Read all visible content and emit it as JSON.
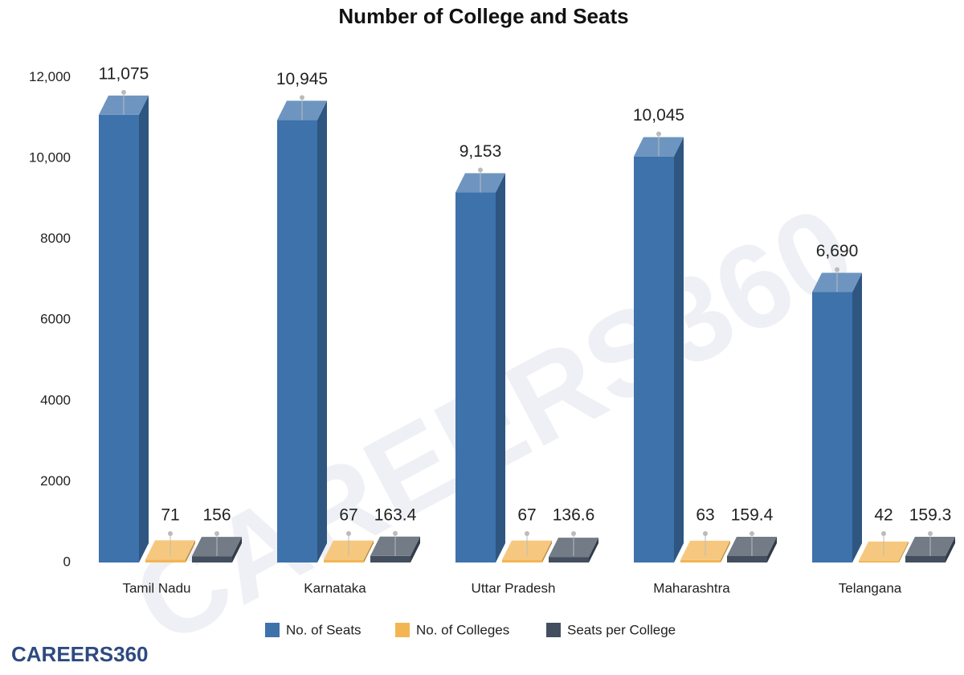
{
  "chart_data": {
    "type": "bar3d",
    "title": "Number of College and Seats",
    "brand": "CAREERS360",
    "categories": [
      "Tamil Nadu",
      "Karnataka",
      "Uttar Pradesh",
      "Maharashtra",
      "Telangana"
    ],
    "series": [
      {
        "name": "No. of Seats",
        "color": "#3d72ab",
        "values": [
          11075,
          10945,
          9153,
          10045,
          6690
        ],
        "value_labels": [
          "11,075",
          "10,945",
          "9,153",
          "10,045",
          "6,690"
        ]
      },
      {
        "name": "No. of Colleges",
        "color": "#f3b554",
        "values": [
          71,
          67,
          67,
          63,
          42
        ]
      },
      {
        "name": "Seats per College",
        "color": "#434f5e",
        "values": [
          156,
          163.4,
          136.6,
          159.4,
          159.3
        ]
      }
    ],
    "ylim": [
      0,
      13000
    ],
    "yticks": [
      0,
      2000,
      4000,
      6000,
      8000,
      {
        "value": 10000,
        "label": "10,000"
      },
      {
        "value": 12000,
        "label": "12,000"
      }
    ],
    "legend": "bottom"
  }
}
